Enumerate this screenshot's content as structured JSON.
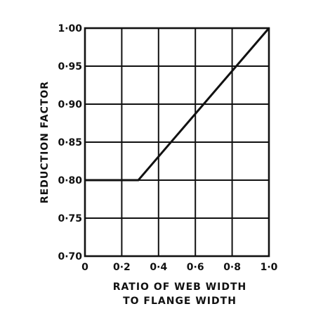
{
  "chart_data": {
    "type": "line",
    "xlabel_lines": [
      "RATIO OF WEB WIDTH",
      "TO FLANGE WIDTH"
    ],
    "ylabel": "REDUCTION FACTOR",
    "xlim": [
      0,
      1.0
    ],
    "ylim": [
      0.7,
      1.0
    ],
    "x_ticks": [
      0,
      0.2,
      0.4,
      0.6,
      0.8,
      1.0
    ],
    "x_tick_labels": [
      "0",
      "0·2",
      "0·4",
      "0·6",
      "0·8",
      "1·0"
    ],
    "y_ticks": [
      0.7,
      0.75,
      0.8,
      0.85,
      0.9,
      0.95,
      1.0
    ],
    "y_tick_labels": [
      "0·70",
      "0·75",
      "0·80",
      "0·85",
      "0·90",
      "0·95",
      "1·00"
    ],
    "grid": true,
    "series": [
      {
        "x": [
          0,
          0.29,
          1.0
        ],
        "y": [
          0.8,
          0.8,
          1.0
        ]
      }
    ],
    "colors": {
      "ink": "#111111"
    }
  }
}
